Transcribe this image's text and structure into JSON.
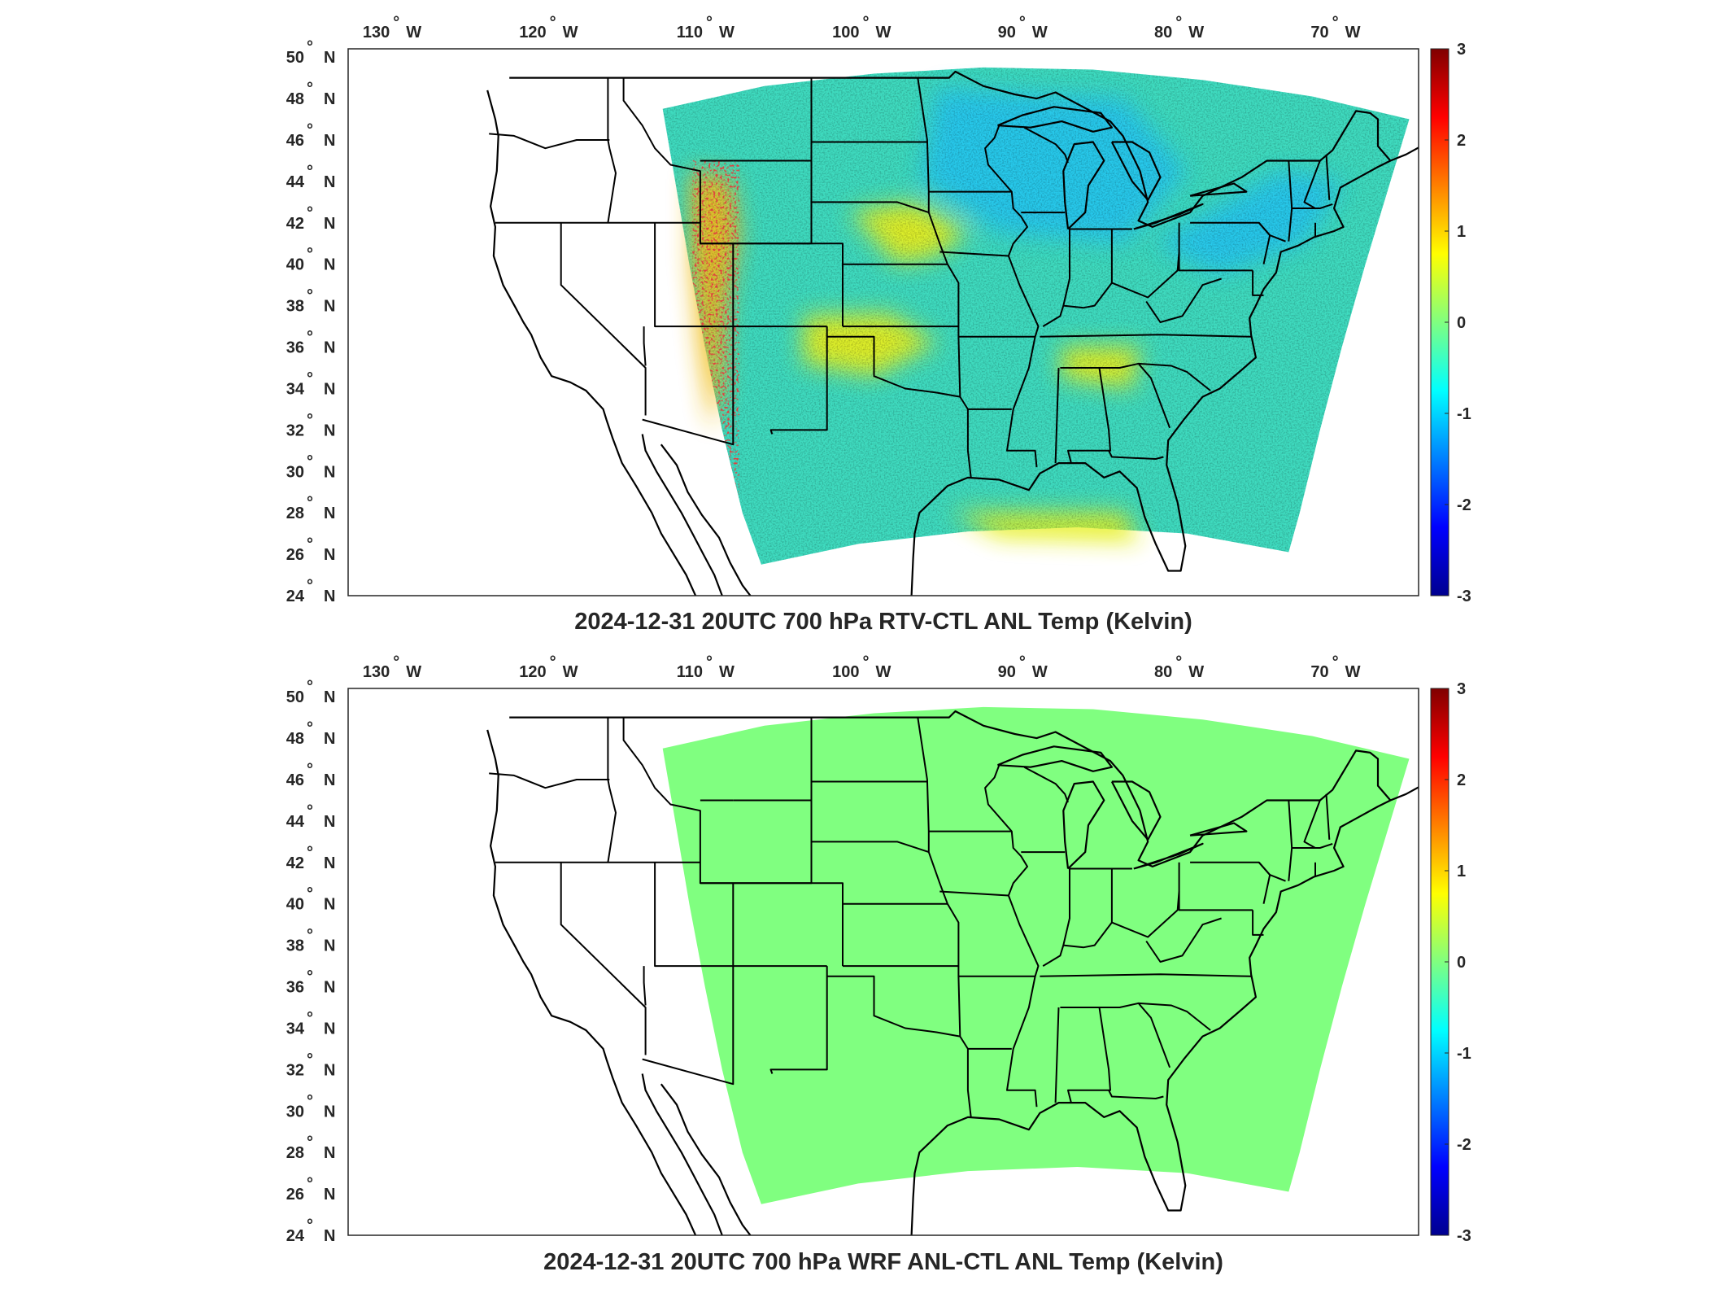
{
  "figure": {
    "lon_ticks": [
      {
        "lon": -130,
        "label": "130",
        "hemi": "W"
      },
      {
        "lon": -120,
        "label": "120",
        "hemi": "W"
      },
      {
        "lon": -110,
        "label": "110",
        "hemi": "W"
      },
      {
        "lon": -100,
        "label": "100",
        "hemi": "W"
      },
      {
        "lon": -90,
        "label": "90",
        "hemi": "W"
      },
      {
        "lon": -80,
        "label": "80",
        "hemi": "W"
      },
      {
        "lon": -70,
        "label": "70",
        "hemi": "W"
      }
    ],
    "lat_ticks": [
      {
        "lat": 50,
        "label": "50",
        "hemi": "N"
      },
      {
        "lat": 48,
        "label": "48",
        "hemi": "N"
      },
      {
        "lat": 46,
        "label": "46",
        "hemi": "N"
      },
      {
        "lat": 44,
        "label": "44",
        "hemi": "N"
      },
      {
        "lat": 42,
        "label": "42",
        "hemi": "N"
      },
      {
        "lat": 40,
        "label": "40",
        "hemi": "N"
      },
      {
        "lat": 38,
        "label": "38",
        "hemi": "N"
      },
      {
        "lat": 36,
        "label": "36",
        "hemi": "N"
      },
      {
        "lat": 34,
        "label": "34",
        "hemi": "N"
      },
      {
        "lat": 32,
        "label": "32",
        "hemi": "N"
      },
      {
        "lat": 30,
        "label": "30",
        "hemi": "N"
      },
      {
        "lat": 28,
        "label": "28",
        "hemi": "N"
      },
      {
        "lat": 26,
        "label": "26",
        "hemi": "N"
      },
      {
        "lat": 24,
        "label": "24",
        "hemi": "N"
      }
    ],
    "degree_symbol": "°"
  },
  "colormap": {
    "name": "jet",
    "stops": [
      "#00008f",
      "#0000ff",
      "#0080ff",
      "#00ffff",
      "#80ff80",
      "#ffff00",
      "#ff8000",
      "#ff0000",
      "#800000"
    ]
  },
  "panels": [
    {
      "title": "2024-12-31 20UTC 700 hPa RTV-CTL ANL Temp (Kelvin)",
      "colorbar": {
        "ticks": [
          "3",
          "2",
          "1",
          "0",
          "-1",
          "-2",
          "-3"
        ],
        "range": [
          -3,
          3
        ]
      },
      "field": {
        "kind": "variable",
        "description": "mostly -0.5 to -1 K, positive near Rockies and Gulf",
        "domain_color": "#3fdcc0"
      }
    },
    {
      "title": "2024-12-31 20UTC 700 hPa WRF ANL-CTL ANL Temp (Kelvin)",
      "colorbar": {
        "ticks": [
          "3",
          "2",
          "1",
          "0",
          "-1",
          "-2",
          "-3"
        ],
        "range": [
          -3,
          3
        ]
      },
      "field": {
        "kind": "uniform",
        "value": 0,
        "domain_color": "#80ff80"
      }
    }
  ]
}
